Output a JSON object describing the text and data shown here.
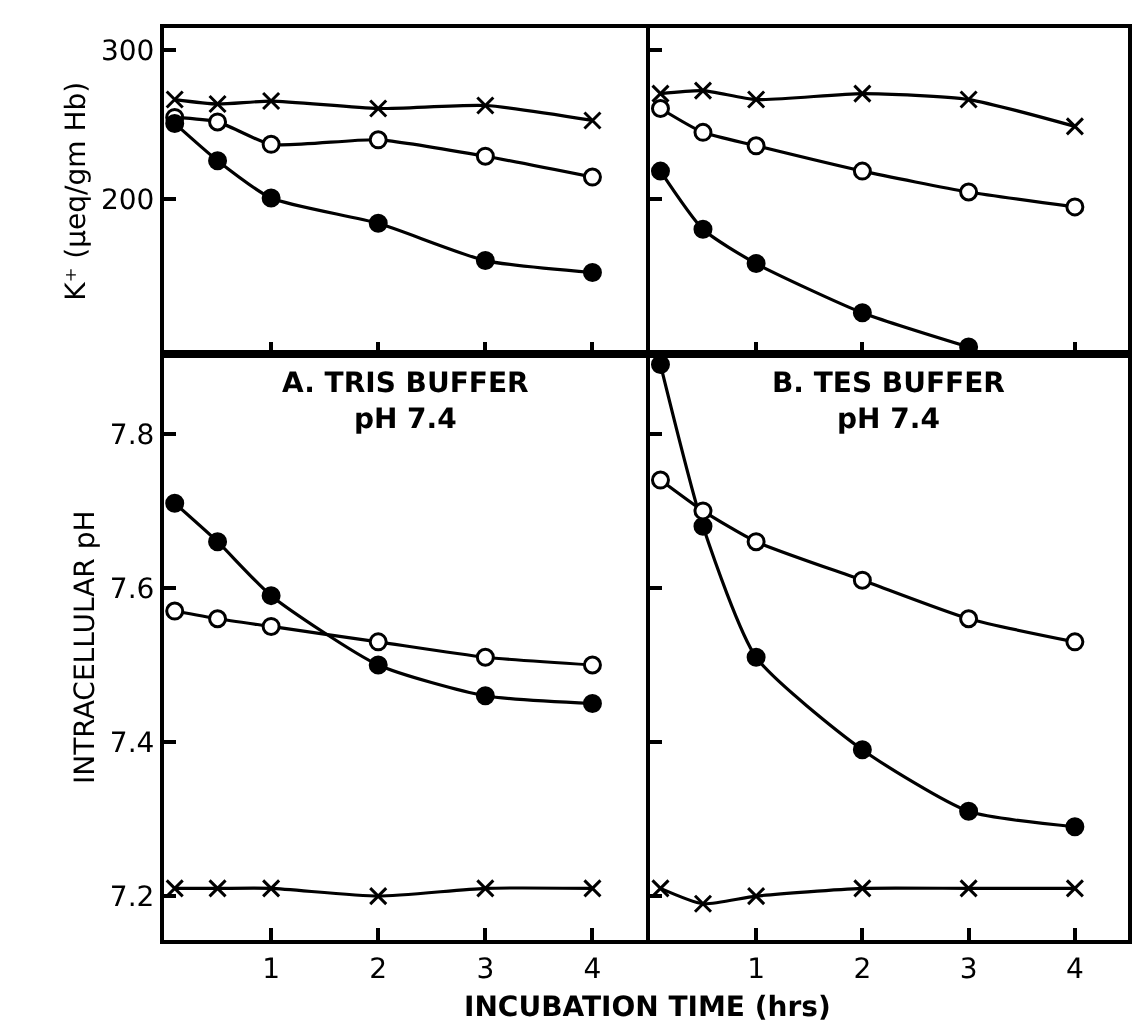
{
  "chart_data": [
    {
      "type": "line",
      "ylabel": "K⁺ (μeq/gm Hb)",
      "xlim": [
        0,
        4.5
      ],
      "xticks": [
        1,
        2,
        3,
        4
      ],
      "ylim": [
        96,
        315
      ],
      "yticks": [
        200,
        300
      ],
      "tick_labels": "y",
      "grid": false,
      "line_style": "solid",
      "series": [
        {
          "color": "#000000",
          "marker": "cross",
          "x": [
            0.1,
            0.5,
            1,
            2,
            3,
            4
          ],
          "values": [
            267,
            264,
            266,
            261,
            263,
            253
          ]
        },
        {
          "color": "#ffffff",
          "marker": "circle",
          "x": [
            0.1,
            0.5,
            1,
            2,
            3,
            4
          ],
          "values": [
            255,
            252,
            237,
            240,
            229,
            215
          ]
        },
        {
          "color": "#000000",
          "marker": "circle",
          "x": [
            0.1,
            0.5,
            1,
            2,
            3,
            4
          ],
          "values": [
            251,
            226,
            201,
            184,
            159,
            151
          ]
        }
      ]
    },
    {
      "type": "line",
      "xlim": [
        0,
        4.5
      ],
      "xticks": [
        1,
        2,
        3,
        4
      ],
      "ylim": [
        96,
        315
      ],
      "yticks": [
        200,
        300
      ],
      "tick_labels": false,
      "grid": false,
      "line_style": "solid",
      "series": [
        {
          "color": "#000000",
          "marker": "cross",
          "x": [
            0.1,
            0.5,
            1,
            2,
            3,
            4
          ],
          "values": [
            271,
            273,
            267,
            271,
            267,
            249
          ]
        },
        {
          "color": "#ffffff",
          "marker": "circle",
          "x": [
            0.1,
            0.5,
            1,
            2,
            3,
            4
          ],
          "values": [
            261,
            245,
            236,
            219,
            205,
            195
          ]
        },
        {
          "color": "#000000",
          "marker": "circle",
          "x": [
            0.1,
            0.5,
            1,
            2,
            3
          ],
          "values": [
            219,
            180,
            157,
            124,
            101
          ]
        }
      ]
    },
    {
      "type": "line",
      "title": "A. TRIS BUFFER\npH 7.4",
      "ylabel": "INTRACELLULAR pH",
      "xlabel": "INCUBATION TIME (hrs)",
      "xlim": [
        0,
        4.5
      ],
      "xticks": [
        1,
        2,
        3,
        4
      ],
      "ylim": [
        7.143,
        7.903
      ],
      "yticks": [
        7.2,
        7.4,
        7.6,
        7.8
      ],
      "grid": false,
      "line_style": "solid",
      "series": [
        {
          "color": "#000000",
          "marker": "circle",
          "x": [
            0.1,
            0.5,
            1,
            2,
            3,
            4
          ],
          "values": [
            7.71,
            7.66,
            7.59,
            7.5,
            7.46,
            7.45
          ]
        },
        {
          "color": "#ffffff",
          "marker": "circle",
          "x": [
            0.1,
            0.5,
            1,
            2,
            3,
            4
          ],
          "values": [
            7.57,
            7.56,
            7.55,
            7.53,
            7.51,
            7.5
          ]
        },
        {
          "color": "#000000",
          "marker": "cross",
          "x": [
            0.1,
            0.5,
            1,
            2,
            3,
            4
          ],
          "values": [
            7.21,
            7.21,
            7.21,
            7.2,
            7.21,
            7.21
          ]
        }
      ]
    },
    {
      "type": "line",
      "title": "B. TES BUFFER\npH 7.4",
      "xlim": [
        0,
        4.5
      ],
      "xticks": [
        1,
        2,
        3,
        4
      ],
      "ylim": [
        7.143,
        7.903
      ],
      "yticks": [
        7.2,
        7.4,
        7.6,
        7.8
      ],
      "tick_labels": "x",
      "grid": false,
      "line_style": "solid",
      "series": [
        {
          "color": "#000000",
          "marker": "circle",
          "x": [
            0.1,
            0.5,
            1,
            2,
            3,
            4
          ],
          "values": [
            7.89,
            7.68,
            7.51,
            7.39,
            7.31,
            7.29
          ]
        },
        {
          "color": "#ffffff",
          "marker": "circle",
          "x": [
            0.1,
            0.5,
            1,
            2,
            3,
            4
          ],
          "values": [
            7.74,
            7.7,
            7.66,
            7.61,
            7.56,
            7.53
          ]
        },
        {
          "color": "#000000",
          "marker": "cross",
          "x": [
            0.1,
            0.5,
            1,
            2,
            3,
            4
          ],
          "values": [
            7.21,
            7.19,
            7.2,
            7.21,
            7.21,
            7.21
          ]
        }
      ]
    }
  ]
}
